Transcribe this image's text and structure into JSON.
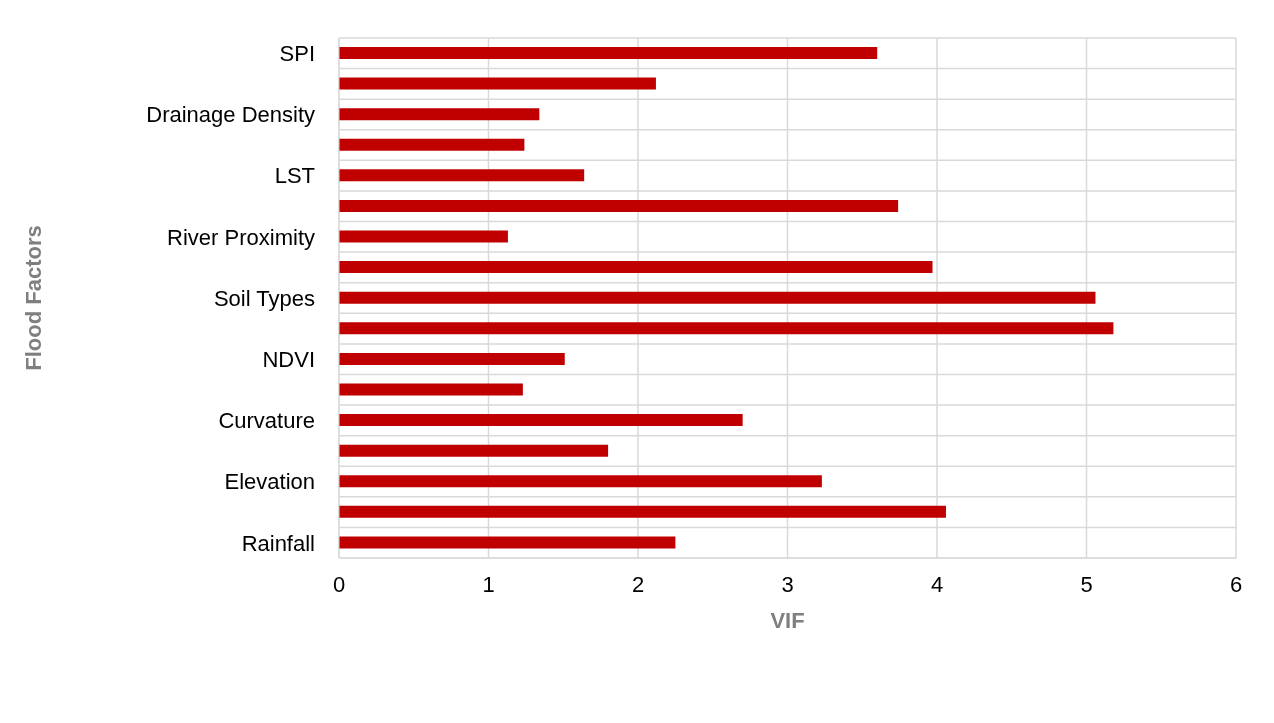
{
  "chart_data": {
    "type": "bar",
    "orientation": "horizontal",
    "xlabel": "VIF",
    "ylabel": "Flood Factors",
    "categories": [
      "SPI",
      null,
      "Drainage Density",
      null,
      "LST",
      null,
      "River Proximity",
      null,
      "Soil Types",
      null,
      "NDVI",
      null,
      "Curvature",
      null,
      "Elevation",
      null,
      "Rainfall"
    ],
    "values": [
      3.6,
      2.12,
      1.34,
      1.24,
      1.64,
      3.74,
      1.13,
      3.97,
      5.06,
      5.18,
      1.51,
      1.23,
      2.7,
      1.8,
      3.23,
      4.06,
      2.25
    ],
    "color": "#c00000",
    "xlim": [
      0,
      6
    ],
    "xticks": [
      0,
      1,
      2,
      3,
      4,
      5,
      6
    ],
    "grid": true
  }
}
